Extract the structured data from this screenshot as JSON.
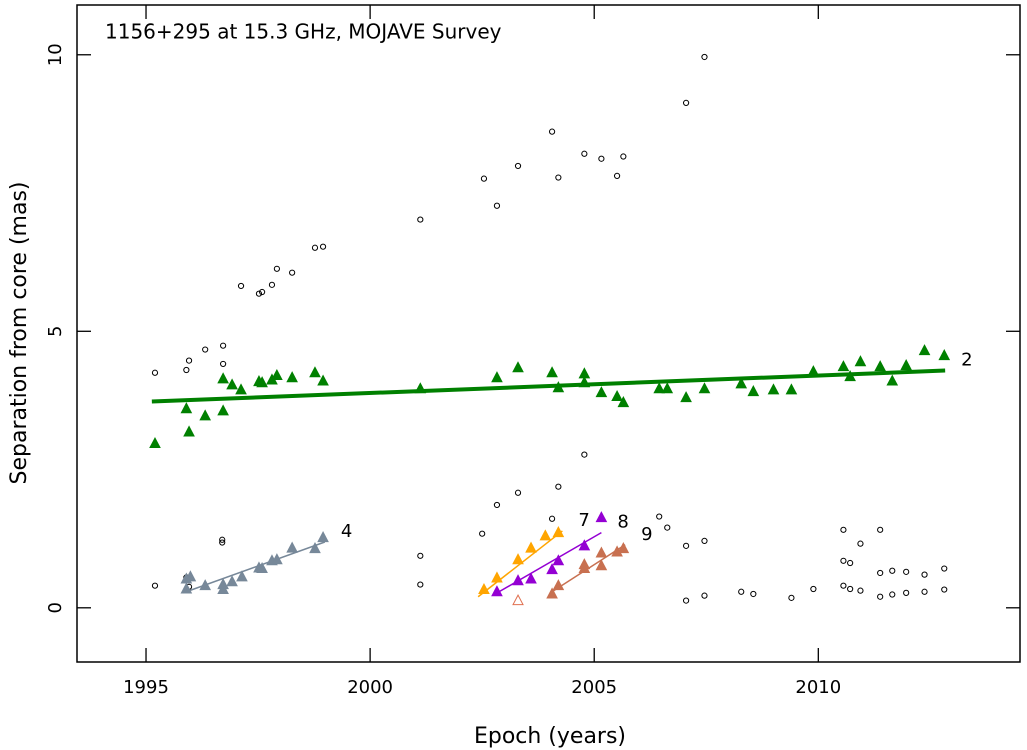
{
  "chart_data": {
    "type": "scatter",
    "title": "1156+295 at 15.3 GHz, MOJAVE Survey",
    "x_label": "Epoch (years)",
    "y_label": "Separation from core (mas)",
    "xlim": [
      1993.46,
      2014.5
    ],
    "ylim": [
      -0.98,
      10.9
    ],
    "xticks": [
      1995,
      2000,
      2005,
      2010
    ],
    "yticks": [
      0,
      5,
      10
    ],
    "series": [
      {
        "marker": "circle",
        "filled": false,
        "color": "#000000",
        "x": [
          1995.2,
          1995.2,
          1995.9,
          1995.96,
          1995.9,
          1995.96,
          1996.32,
          1996.72,
          1996.72,
          1996.7,
          1996.7,
          1997.12,
          1997.52,
          1997.59,
          1997.81,
          1997.92,
          1998.26,
          1998.77,
          1998.95,
          2001.12,
          2001.12,
          2001.12,
          2002.54,
          2002.5,
          2002.83,
          2002.83,
          2003.3,
          2003.3,
          2004.06,
          2004.06,
          2004.2,
          2004.2,
          2004.78,
          2004.78,
          2005.16,
          2005.51,
          2005.65,
          2006.45,
          2006.63,
          2007.05,
          2007.05,
          2007.05,
          2007.46,
          2007.46,
          2007.46,
          2008.28,
          2008.55,
          2009.4,
          2009.89,
          2010.56,
          2010.56,
          2010.71,
          2010.56,
          2010.71,
          2010.94,
          2010.94,
          2011.38,
          2011.38,
          2011.38,
          2011.65,
          2011.65,
          2011.96,
          2011.96,
          2012.37,
          2012.37,
          2012.81,
          2012.81
        ],
        "values": [
          0.4,
          4.25,
          4.3,
          4.47,
          0.55,
          0.38,
          4.67,
          4.74,
          4.41,
          1.23,
          1.18,
          5.82,
          5.68,
          5.71,
          5.84,
          6.13,
          6.06,
          6.51,
          6.53,
          7.02,
          0.94,
          0.42,
          7.76,
          1.34,
          7.27,
          1.86,
          7.99,
          2.08,
          8.61,
          1.61,
          7.78,
          2.19,
          8.21,
          2.77,
          8.12,
          7.81,
          8.16,
          1.65,
          1.45,
          9.13,
          1.12,
          0.13,
          9.96,
          1.21,
          0.22,
          0.29,
          0.25,
          0.18,
          0.34,
          1.41,
          0.85,
          0.81,
          0.4,
          0.34,
          1.16,
          0.31,
          1.41,
          0.63,
          0.2,
          0.67,
          0.24,
          0.65,
          0.27,
          0.6,
          0.29,
          0.71,
          0.33
        ]
      },
      {
        "name": "2",
        "marker": "triangle",
        "filled": true,
        "color": "#008000",
        "label_color": "#55bb55",
        "x": [
          1995.2,
          1995.9,
          1995.96,
          1996.32,
          1996.72,
          1996.72,
          1996.92,
          1997.12,
          1997.52,
          1997.59,
          1997.81,
          1997.92,
          1998.26,
          1998.77,
          1998.95,
          2001.12,
          2002.83,
          2003.3,
          2004.06,
          2004.2,
          2004.78,
          2004.78,
          2005.16,
          2005.51,
          2005.65,
          2006.45,
          2006.63,
          2007.05,
          2007.46,
          2008.28,
          2008.55,
          2009.0,
          2009.4,
          2009.89,
          2010.56,
          2010.71,
          2010.94,
          2011.38,
          2011.65,
          2011.96,
          2012.37,
          2012.81
        ],
        "values": [
          2.97,
          3.6,
          3.18,
          3.47,
          3.56,
          4.14,
          4.03,
          3.94,
          4.09,
          4.07,
          4.12,
          4.2,
          4.16,
          4.25,
          4.1,
          3.96,
          4.16,
          4.34,
          4.25,
          3.98,
          4.23,
          4.07,
          3.89,
          3.82,
          3.71,
          3.96,
          3.96,
          3.8,
          3.96,
          4.05,
          3.91,
          3.94,
          3.94,
          4.27,
          4.36,
          4.18,
          4.45,
          4.36,
          4.1,
          4.38,
          4.65,
          4.56
        ],
        "fit_x": [
          1995.13,
          2012.83
        ],
        "fit_y": [
          3.73,
          4.29
        ],
        "fit_width": 4
      },
      {
        "name": "4",
        "marker": "triangle",
        "filled": true,
        "color": "#778899",
        "label_color": "#aaaaaa",
        "x": [
          1995.9,
          1995.99,
          1995.9,
          1996.32,
          1996.72,
          1996.72,
          1996.92,
          1997.14,
          1997.52,
          1997.59,
          1997.81,
          1997.92,
          1998.26,
          1998.77,
          1998.95
        ],
        "values": [
          0.52,
          0.56,
          0.34,
          0.4,
          0.33,
          0.42,
          0.47,
          0.56,
          0.72,
          0.71,
          0.85,
          0.87,
          1.08,
          1.07,
          1.27
        ],
        "fit_x": [
          1995.83,
          1998.99
        ],
        "fit_y": [
          0.27,
          1.19
        ],
        "fit_width": 1.5
      },
      {
        "name": "7",
        "marker": "triangle",
        "filled": true,
        "color": "#ffa500",
        "label_color": "#ffc040",
        "x": [
          2002.54,
          2002.83,
          2003.3,
          2003.59,
          2003.91,
          2004.2
        ],
        "values": [
          0.33,
          0.54,
          0.87,
          1.08,
          1.3,
          1.36
        ],
        "fit_x": [
          2002.41,
          2004.29
        ],
        "fit_y": [
          0.2,
          1.39
        ],
        "fit_width": 1.5
      },
      {
        "name": "8",
        "marker": "triangle",
        "filled": true,
        "color": "#9400d3",
        "label_color": "#cc66ff",
        "x": [
          2002.83,
          2003.3,
          2003.59,
          2004.06,
          2004.2,
          2004.78,
          2005.16
        ],
        "values": [
          0.29,
          0.49,
          0.52,
          0.69,
          0.85,
          1.12,
          1.63
        ],
        "fit_x": [
          2002.77,
          2005.16
        ],
        "fit_y": [
          0.24,
          1.36
        ],
        "fit_width": 1.5
      },
      {
        "name": "9",
        "marker": "triangle",
        "filled": true,
        "color": "#c87050",
        "label_color": "#e8a878",
        "x": [
          2004.06,
          2004.2,
          2004.78,
          2004.78,
          2005.16,
          2005.16,
          2005.51,
          2005.65
        ],
        "values": [
          0.25,
          0.4,
          0.78,
          0.71,
          0.76,
          0.99,
          1.01,
          1.07
        ],
        "fit_x": [
          2004.06,
          2005.69
        ],
        "fit_y": [
          0.29,
          1.14
        ],
        "fit_width": 1.5
      },
      {
        "marker": "triangle",
        "filled": false,
        "color": "#e07050",
        "x": [
          2003.3
        ],
        "values": [
          0.13
        ]
      }
    ]
  }
}
